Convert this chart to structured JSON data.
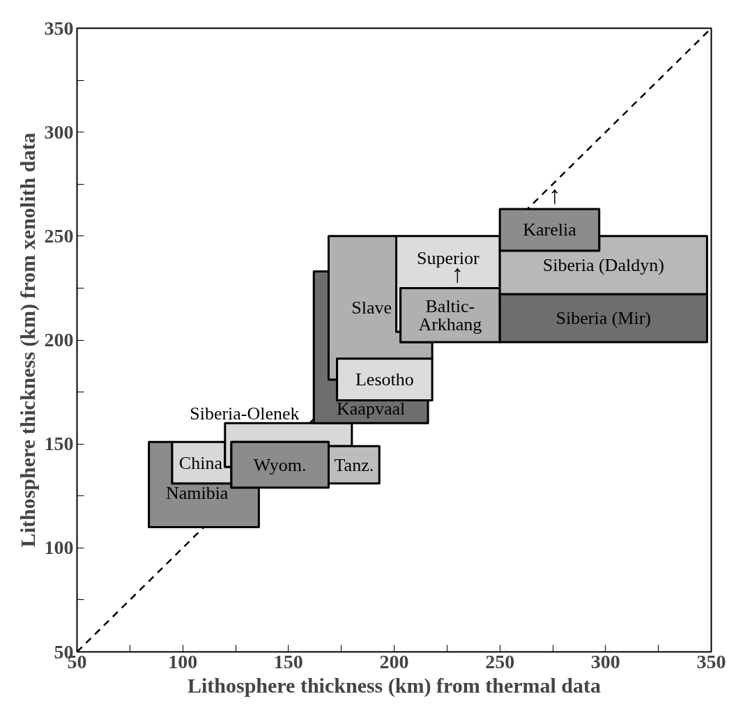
{
  "chart_data": {
    "type": "line",
    "xlabel": "Lithosphere thickness (km) from thermal data",
    "ylabel": "Lithosphere thickness (km) from xenolith data",
    "xlim": [
      50,
      350
    ],
    "ylim": [
      50,
      350
    ],
    "xticks": [
      50,
      {
        "value": 75,
        "label": null
      },
      100,
      {
        "value": 125,
        "label": null
      },
      150,
      {
        "value": 175,
        "label": null
      },
      200,
      {
        "value": 225,
        "label": null
      },
      250,
      {
        "value": 275,
        "label": null
      },
      300,
      {
        "value": 325,
        "label": null
      },
      350
    ],
    "yticks": [
      50,
      {
        "value": 75,
        "label": null
      },
      100,
      {
        "value": 125,
        "label": null
      },
      150,
      {
        "value": 175,
        "label": null
      },
      200,
      {
        "value": 225,
        "label": null
      },
      250,
      {
        "value": 275,
        "label": null
      },
      300,
      {
        "value": 325,
        "label": null
      },
      350
    ],
    "grid": false,
    "legend": false,
    "series": [
      {
        "line_style": "dashed",
        "color": "#000000",
        "x": [
          50,
          350
        ],
        "values": [
          50,
          350
        ]
      },
      {
        "type": "area",
        "name": "Namibia",
        "color": "#8c8c8c",
        "x": [
          84,
          84,
          95,
          95,
          123,
          123,
          136,
          136
        ],
        "values": [
          110,
          151,
          151,
          131,
          131,
          129,
          129,
          110
        ]
      },
      {
        "type": "area",
        "name": "China",
        "color": "#d8d8d8",
        "x": [
          95,
          95,
          120,
          120,
          123,
          123
        ],
        "values": [
          131,
          151,
          151,
          139,
          139,
          131
        ]
      },
      {
        "type": "area",
        "name": "Siberia-Olenek",
        "color": "#d8d8d8",
        "x": [
          120,
          120,
          180,
          180,
          169,
          169,
          123,
          123
        ],
        "values": [
          139,
          160,
          160,
          149,
          149,
          151,
          151,
          139
        ]
      },
      {
        "type": "area",
        "name": "Tanz.",
        "color": "#bdbdbd",
        "x": [
          169,
          169,
          193,
          193
        ],
        "values": [
          131,
          149,
          149,
          131
        ]
      },
      {
        "type": "area",
        "name": "Wyom.",
        "color": "#8c8c8c",
        "x": [
          123,
          123,
          169,
          169
        ],
        "values": [
          129,
          151,
          151,
          129
        ]
      },
      {
        "type": "area",
        "name": "Kaapvaal",
        "color": "#6e6e6e",
        "x": [
          162,
          162,
          169,
          169,
          173,
          173,
          216,
          216
        ],
        "values": [
          160,
          233,
          233,
          181,
          181,
          171,
          171,
          160
        ]
      },
      {
        "type": "area",
        "name": "Slave",
        "color": "#b0b0b0",
        "x": [
          169,
          169,
          201,
          201,
          203,
          203,
          218,
          218,
          173,
          173
        ],
        "values": [
          181,
          250,
          250,
          204,
          204,
          199,
          199,
          191,
          191,
          181
        ]
      },
      {
        "type": "area",
        "name": "Superior",
        "color": "#dcdcdc",
        "x": [
          201,
          201,
          250,
          250,
          203,
          203
        ],
        "values": [
          204,
          250,
          250,
          225,
          225,
          204
        ]
      },
      {
        "type": "area",
        "name": "Lesotho",
        "color": "#dcdcdc",
        "x": [
          173,
          173,
          218,
          218
        ],
        "values": [
          171,
          191,
          191,
          171
        ]
      },
      {
        "type": "area",
        "name": "Baltic-\nArkhang",
        "color": "#b0b0b0",
        "x": [
          203,
          203,
          250,
          250
        ],
        "values": [
          199,
          225,
          225,
          199
        ]
      },
      {
        "type": "area",
        "name": "Siberia (Daldyn)",
        "color": "#b8b8b8",
        "x": [
          250,
          250,
          297,
          297,
          348,
          348
        ],
        "values": [
          222,
          243,
          243,
          250,
          250,
          222
        ]
      },
      {
        "type": "area",
        "name": "Siberia (Mir)",
        "color": "#6e6e6e",
        "x": [
          250,
          250,
          348,
          348
        ],
        "values": [
          199,
          222,
          222,
          199
        ]
      },
      {
        "type": "area",
        "name": "Karelia",
        "color": "#8c8c8c",
        "x": [
          250,
          250,
          297,
          297
        ],
        "values": [
          243,
          263,
          263,
          243
        ]
      }
    ],
    "annotations": [
      {
        "text": "↑",
        "x": 230,
        "y": 225
      },
      {
        "text": "↑",
        "x": 276,
        "y": 263
      }
    ]
  }
}
